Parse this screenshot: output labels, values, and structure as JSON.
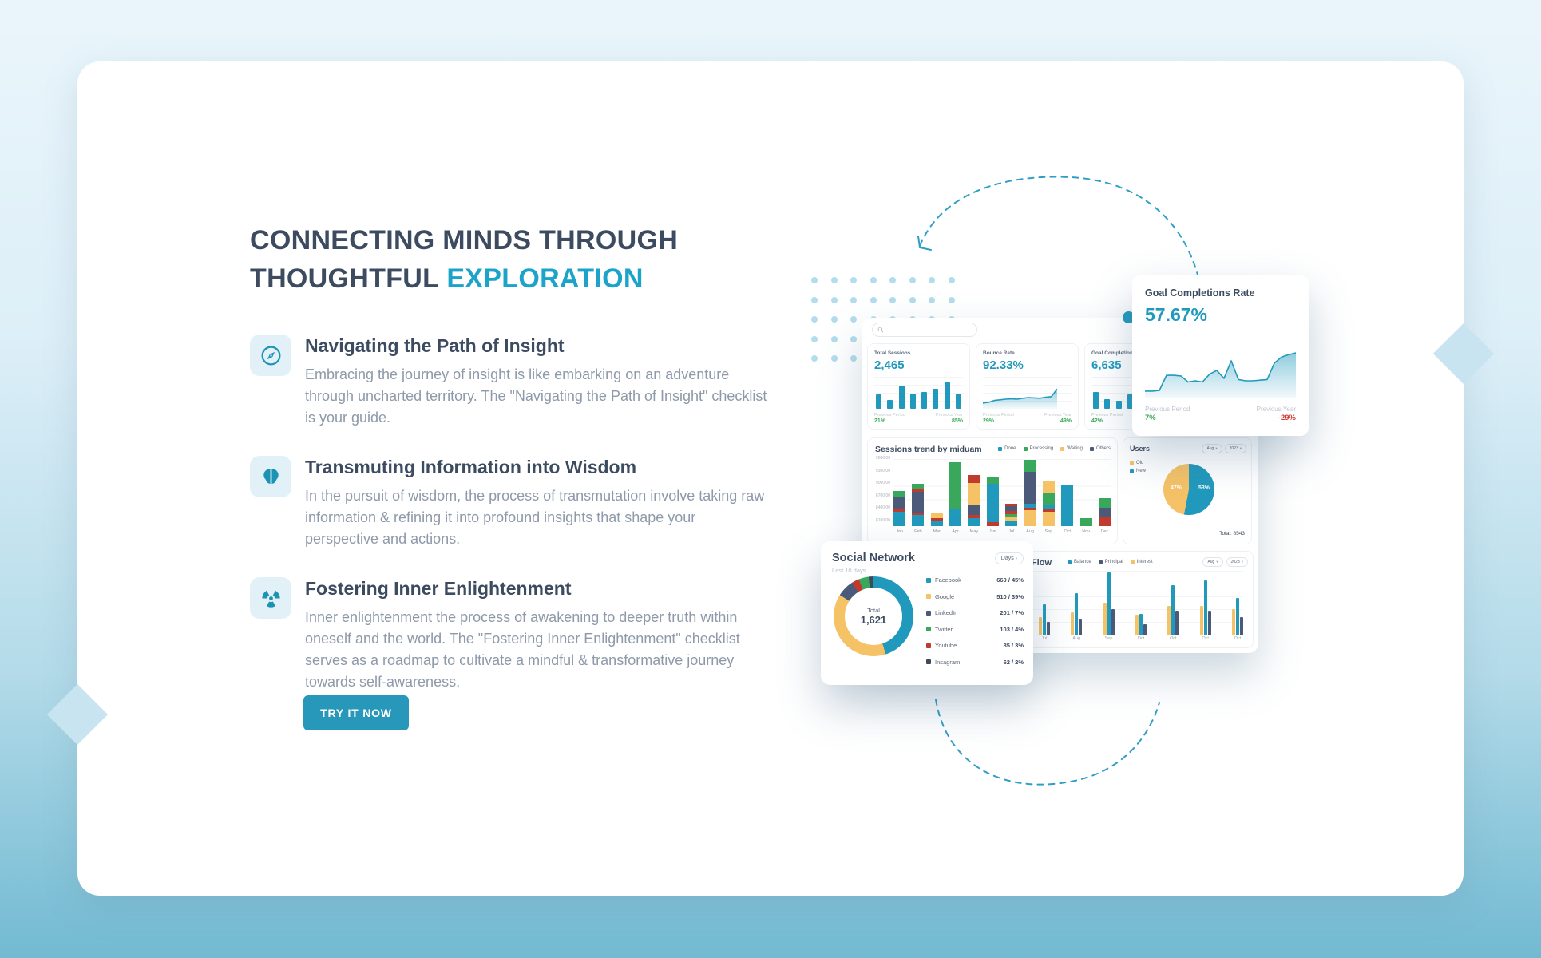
{
  "icons": {
    "chevron_down": "▾"
  },
  "colors": {
    "teal": "#2199bd",
    "green": "#3aa85c",
    "yellow": "#f5c366",
    "navy": "#4a5a78",
    "red": "#c03a2e",
    "dark": "#3d4a5d",
    "pieYellow": "#f6c267",
    "accent": "#1ba3c9",
    "headline": "#3c4b60",
    "body_text": "#8e99a9",
    "up_green": "#35a853",
    "down_red": "#d4392e",
    "button": "#2798ba"
  },
  "hero": {
    "title": {
      "line1": "CONNECTING MINDS THROUGH",
      "line2": "THOUGHTFUL",
      "highlight": "EXPLORATION"
    },
    "features": [
      {
        "icon": "compass-icon",
        "title": "Navigating the Path of Insight",
        "desc": "Embracing the journey of insight is like embarking on an adventure through uncharted territory. The \"Navigating the Path of Insight\" checklist is your guide."
      },
      {
        "icon": "brain-icon",
        "title": "Transmuting Information into Wisdom",
        "desc": "In the pursuit of wisdom, the process of transmutation involve taking raw information & refining it into profound insights that shape your perspective and actions."
      },
      {
        "icon": "radiation-icon",
        "title": "Fostering Inner Enlightenment",
        "desc": "Inner enlightenment the process of awakening to deeper truth within oneself and the world. The \"Fostering Inner Enlightenment\" checklist serves as a roadmap to cultivate a mindful & transformative journey towards self-awareness,"
      }
    ],
    "cta_label": "TRY IT NOW"
  },
  "dashboard": {
    "search": {
      "placeholder": ""
    },
    "stats": [
      {
        "label": "Total Sessions",
        "value": "2,465",
        "chart": "total_sessions_mini",
        "footer": {
          "period_label": "Previous Period",
          "period_value": "21%",
          "year_label": "Previous Year",
          "year_value": "85%"
        }
      },
      {
        "label": "Bounce Rate",
        "value": "92.33%",
        "chart": "bounce_rate_mini",
        "footer": {
          "period_label": "Previous Period",
          "period_value": "29%",
          "year_label": "Previous Year",
          "year_value": "49%"
        }
      },
      {
        "label": "Goal Completions",
        "value": "6,635",
        "chart": "goal_completions_mini",
        "footer": {
          "period_label": "Previous Period",
          "period_value": "42%",
          "year_label": "",
          "year_value": ""
        }
      }
    ],
    "goal_rate_card": {
      "title": "Goal Completions Rate",
      "value": "57.67%",
      "period_label": "Previous Period",
      "period_value": "7%",
      "year_label": "Previous Year",
      "year_value": "-29%"
    },
    "sessions": {
      "title": "Sessions trend by miduam",
      "legend": [
        {
          "name": "Done",
          "color": "teal"
        },
        {
          "name": "Processing",
          "color": "green"
        },
        {
          "name": "Waiting",
          "color": "yellow"
        },
        {
          "name": "Others",
          "color": "navy"
        }
      ]
    },
    "users": {
      "title": "Users",
      "month": "Aug",
      "year": "2023",
      "legend": [
        {
          "name": "Old",
          "color": "pieYellow"
        },
        {
          "name": "New",
          "color": "teal"
        }
      ],
      "slice_labels": [
        "47%",
        "53%"
      ],
      "total": "Total: 8543"
    },
    "social": {
      "title": "Social Network",
      "subtitle": "Last 10 days",
      "range": "Days",
      "total_caption": "Total",
      "total_value": "1,621",
      "items": [
        {
          "name": "Facebook",
          "stat": "660 / 45%",
          "color": "teal"
        },
        {
          "name": "Google",
          "stat": "510 / 39%",
          "color": "yellow"
        },
        {
          "name": "LinkedIn",
          "stat": "201 / 7%",
          "color": "navy"
        },
        {
          "name": "Twitter",
          "stat": "103 / 4%",
          "color": "green"
        },
        {
          "name": "Youtube",
          "stat": "85 / 3%",
          "color": "red"
        },
        {
          "name": "Insagram",
          "stat": "62 / 2%",
          "color": "dark"
        }
      ]
    },
    "cashflow": {
      "title": "Cash Flow",
      "month": "Aug",
      "year": "2023",
      "legend": [
        {
          "name": "Balance",
          "color": "teal"
        },
        {
          "name": "Principal",
          "color": "navy"
        },
        {
          "name": "Interest",
          "color": "yellow"
        }
      ]
    }
  },
  "chart_data": [
    {
      "id": "total_sessions_mini",
      "type": "bar",
      "title": "Total Sessions",
      "values": [
        45,
        28,
        72,
        48,
        52,
        62,
        85,
        48
      ]
    },
    {
      "id": "bounce_rate_mini",
      "type": "area",
      "title": "Bounce Rate",
      "values": [
        18,
        20,
        26,
        28,
        30,
        31,
        30,
        33,
        35,
        34,
        33,
        36,
        38,
        62
      ]
    },
    {
      "id": "goal_completions_mini",
      "type": "bar",
      "title": "Goal Completions",
      "values": [
        52,
        30,
        26,
        46,
        64,
        84,
        56,
        44
      ]
    },
    {
      "id": "goal_completions_rate",
      "type": "area",
      "title": "Goal Completions Rate",
      "values": [
        12,
        12,
        13,
        38,
        38,
        37,
        27,
        29,
        27,
        40,
        46,
        33,
        62,
        31,
        29,
        29,
        30,
        31,
        58,
        68,
        72,
        75
      ]
    },
    {
      "id": "sessions_trend",
      "type": "stacked-bar",
      "title": "Sessions trend by miduam",
      "categories": [
        "Jan",
        "Feb",
        "Mar",
        "Apr",
        "May",
        "Jun",
        "Jul",
        "Aug",
        "Sep",
        "Oct",
        "Nov",
        "Dec"
      ],
      "y_tick_labels": [
        "9600.00",
        "9300.00",
        "9000.00",
        "8700.00",
        "8400.00",
        "8100.00"
      ],
      "legend": [
        "Done",
        "Processing",
        "Waiting",
        "Others"
      ],
      "bars": [
        [
          [
            "teal",
            18
          ],
          [
            "red",
            4
          ],
          [
            "navy",
            14
          ],
          [
            "green",
            8
          ]
        ],
        [
          [
            "teal",
            14
          ],
          [
            "red",
            3
          ],
          [
            "navy",
            26
          ],
          [
            "red",
            4
          ],
          [
            "green",
            6
          ]
        ],
        [
          [
            "teal",
            6
          ],
          [
            "red",
            4
          ],
          [
            "yellow",
            6
          ]
        ],
        [
          [
            "teal",
            22
          ],
          [
            "green",
            58
          ]
        ],
        [
          [
            "teal",
            10
          ],
          [
            "red",
            4
          ],
          [
            "navy",
            12
          ],
          [
            "yellow",
            28
          ],
          [
            "red",
            10
          ]
        ],
        [
          [
            "red",
            5
          ],
          [
            "teal",
            48
          ],
          [
            "green",
            9
          ]
        ],
        [
          [
            "teal",
            6
          ],
          [
            "yellow",
            5
          ],
          [
            "green",
            4
          ],
          [
            "red",
            4
          ],
          [
            "navy",
            6
          ],
          [
            "red",
            3
          ]
        ],
        [
          [
            "yellow",
            20
          ],
          [
            "red",
            3
          ],
          [
            "teal",
            5
          ],
          [
            "navy",
            40
          ],
          [
            "green",
            15
          ]
        ],
        [
          [
            "yellow",
            18
          ],
          [
            "red",
            3
          ],
          [
            "teal",
            6
          ],
          [
            "green",
            14
          ],
          [
            "yellow",
            16
          ]
        ],
        [
          [
            "teal",
            52
          ]
        ],
        [
          [
            "green",
            10
          ]
        ],
        [
          [
            "red",
            12
          ],
          [
            "navy",
            11
          ],
          [
            "green",
            12
          ]
        ]
      ]
    },
    {
      "id": "users_pie",
      "type": "pie",
      "title": "Users",
      "ring": [
        [
          "teal",
          53
        ],
        [
          "pieYellow",
          47
        ]
      ],
      "slices": [
        {
          "name": "Old",
          "pct": 47
        },
        {
          "name": "New",
          "pct": 53
        }
      ],
      "note": "Total: 8543"
    },
    {
      "id": "social_donut",
      "type": "donut",
      "title": "Social Network",
      "total": "1,621",
      "ring": [
        [
          "teal",
          45
        ],
        [
          "yellow",
          39
        ],
        [
          "navy",
          7
        ],
        [
          "red",
          3
        ],
        [
          "green",
          4
        ],
        [
          "dark",
          2
        ]
      ]
    },
    {
      "id": "cash_flow",
      "type": "grouped-bar",
      "title": "Cash Flow",
      "categories": [
        "Feb",
        "Mar",
        "Apr",
        "May",
        "Jun",
        "Jul",
        "Aug",
        "Sep",
        "Oct",
        "Oct",
        "Oct",
        "Oct"
      ],
      "series": [
        {
          "name": "Interest",
          "color": "yellow",
          "values": [
            30,
            36,
            33,
            36,
            36,
            22,
            28,
            40,
            25,
            36,
            36,
            32
          ]
        },
        {
          "name": "Balance",
          "color": "teal",
          "values": [
            50,
            62,
            46,
            61,
            68,
            38,
            52,
            78,
            26,
            62,
            68,
            46
          ]
        },
        {
          "name": "Principal",
          "color": "navy",
          "values": [
            24,
            30,
            20,
            30,
            30,
            16,
            20,
            32,
            13,
            30,
            30,
            22
          ]
        }
      ]
    }
  ]
}
